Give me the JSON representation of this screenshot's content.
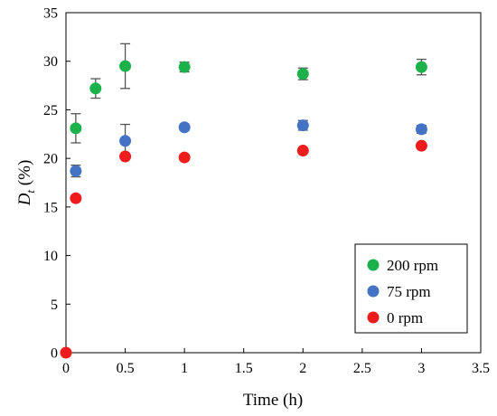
{
  "chart_data": {
    "type": "scatter",
    "title": "",
    "xlabel": "Time (h)",
    "ylabel": {
      "main": "D",
      "sub": "t",
      "suffix": " (%)"
    },
    "xlim": [
      0,
      3.5
    ],
    "ylim": [
      0,
      35
    ],
    "xticks": [
      "0",
      "0.5",
      "1",
      "1.5",
      "2",
      "2.5",
      "3",
      "3.5"
    ],
    "yticks": [
      "0",
      "5",
      "10",
      "15",
      "20",
      "25",
      "30",
      "35"
    ],
    "grid": false,
    "legend_position": "bottom-right",
    "series": [
      {
        "name": "200 rpm",
        "color": "#1db14b",
        "points": [
          {
            "x": 0.083,
            "y": 23.1,
            "err": 1.5
          },
          {
            "x": 0.25,
            "y": 27.2,
            "err": 1.0
          },
          {
            "x": 0.5,
            "y": 29.5,
            "err": 2.3
          },
          {
            "x": 1,
            "y": 29.4,
            "err": 0.5
          },
          {
            "x": 2,
            "y": 28.7,
            "err": 0.6
          },
          {
            "x": 3,
            "y": 29.4,
            "err": 0.8
          }
        ]
      },
      {
        "name": "75 rpm",
        "color": "#4472c4",
        "points": [
          {
            "x": 0.083,
            "y": 18.7,
            "err": 0.6
          },
          {
            "x": 0.5,
            "y": 21.8,
            "err": 1.7
          },
          {
            "x": 1,
            "y": 23.2,
            "err": 0.3
          },
          {
            "x": 2,
            "y": 23.4,
            "err": 0.5
          },
          {
            "x": 3,
            "y": 23.0,
            "err": 0.4
          }
        ]
      },
      {
        "name": "0 rpm",
        "color": "#ee1c1c",
        "points": [
          {
            "x": 0,
            "y": 0,
            "err": 0
          },
          {
            "x": 0.083,
            "y": 15.9,
            "err": 0
          },
          {
            "x": 0.5,
            "y": 20.2,
            "err": 0
          },
          {
            "x": 1,
            "y": 20.1,
            "err": 0
          },
          {
            "x": 2,
            "y": 20.8,
            "err": 0
          },
          {
            "x": 3,
            "y": 21.3,
            "err": 0
          }
        ]
      }
    ]
  }
}
